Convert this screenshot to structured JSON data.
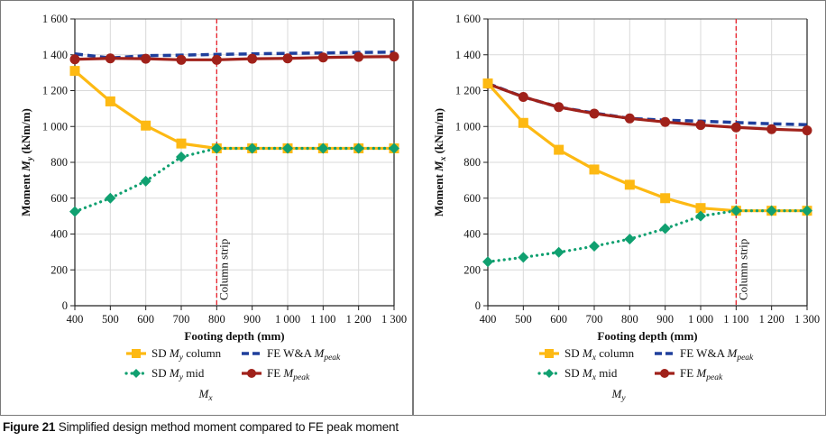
{
  "caption": {
    "label": "Figure 21",
    "text": "Simplified design method moment compared to FE peak moment"
  },
  "chart_data": [
    {
      "type": "line",
      "panel_title": "Mx",
      "xlabel": "Footing depth (mm)",
      "ylabel": "Moment My (kNm/m)",
      "ylabel_parts": [
        "Moment ",
        "M",
        "y",
        " (kNm/m)"
      ],
      "x": [
        400,
        500,
        600,
        700,
        800,
        900,
        1000,
        1100,
        1200,
        1300
      ],
      "x_tick_labels": [
        "400",
        "500",
        "600",
        "700",
        "800",
        "900",
        "1 000",
        "1 100",
        "1 200",
        "1 300"
      ],
      "xlim": [
        400,
        1300
      ],
      "ylim": [
        0,
        1600
      ],
      "y_ticks": [
        0,
        200,
        400,
        600,
        800,
        1000,
        1200,
        1400,
        1600
      ],
      "y_tick_labels": [
        "0",
        "200",
        "400",
        "600",
        "800",
        "1 000",
        "1 200",
        "1 400",
        "1 600"
      ],
      "grid": true,
      "legend_position": "bottom",
      "annotation": {
        "x": 800,
        "label": "Column strip",
        "style": "red-dashed-vertical"
      },
      "series": [
        {
          "key": "sd_col",
          "name": "SD My column",
          "name_parts": [
            "SD ",
            "M",
            "y",
            " column"
          ],
          "color": "#FDB913",
          "style": "solid",
          "marker": "square",
          "values": [
            1310,
            1140,
            1005,
            905,
            878,
            878,
            878,
            878,
            878,
            878
          ]
        },
        {
          "key": "sd_mid",
          "name": "SD My mid",
          "name_parts": [
            "SD ",
            "M",
            "y",
            " mid"
          ],
          "color": "#10A070",
          "style": "dotted",
          "marker": "diamond",
          "values": [
            525,
            600,
            695,
            830,
            878,
            878,
            878,
            878,
            878,
            878
          ]
        },
        {
          "key": "fe_wa",
          "name": "FE W&A Mpeak",
          "name_parts": [
            "FE W&A ",
            "M",
            "peak",
            ""
          ],
          "color": "#1F3F9C",
          "style": "dashed",
          "marker": "none",
          "values": [
            1405,
            1382,
            1395,
            1398,
            1402,
            1405,
            1408,
            1410,
            1413,
            1415
          ]
        },
        {
          "key": "fe_peak",
          "name": "FE Mpeak",
          "name_parts": [
            "FE ",
            "M",
            "peak",
            ""
          ],
          "color": "#A0211A",
          "style": "solid",
          "marker": "circle",
          "values": [
            1375,
            1380,
            1378,
            1372,
            1372,
            1378,
            1380,
            1385,
            1388,
            1390
          ]
        }
      ]
    },
    {
      "type": "line",
      "panel_title": "My",
      "xlabel": "Footing depth (mm)",
      "ylabel": "Moment Mx (kNm/m)",
      "ylabel_parts": [
        "Moment ",
        "M",
        "x",
        " (kNm/m)"
      ],
      "x": [
        400,
        500,
        600,
        700,
        800,
        900,
        1000,
        1100,
        1200,
        1300
      ],
      "x_tick_labels": [
        "400",
        "500",
        "600",
        "700",
        "800",
        "900",
        "1 000",
        "1 100",
        "1 200",
        "1 300"
      ],
      "xlim": [
        400,
        1300
      ],
      "ylim": [
        0,
        1600
      ],
      "y_ticks": [
        0,
        200,
        400,
        600,
        800,
        1000,
        1200,
        1400,
        1600
      ],
      "y_tick_labels": [
        "0",
        "200",
        "400",
        "600",
        "800",
        "1 000",
        "1 200",
        "1 400",
        "1 600"
      ],
      "grid": true,
      "legend_position": "bottom",
      "annotation": {
        "x": 1100,
        "label": "Column strip",
        "style": "red-dashed-vertical"
      },
      "series": [
        {
          "key": "sd_col",
          "name": "SD Mx column",
          "name_parts": [
            "SD ",
            "M",
            "x",
            " column"
          ],
          "color": "#FDB913",
          "style": "solid",
          "marker": "square",
          "values": [
            1240,
            1020,
            870,
            760,
            675,
            600,
            545,
            530,
            530,
            530
          ]
        },
        {
          "key": "sd_mid",
          "name": "SD Mx mid",
          "name_parts": [
            "SD ",
            "M",
            "x",
            " mid"
          ],
          "color": "#10A070",
          "style": "dotted",
          "marker": "diamond",
          "values": [
            245,
            270,
            298,
            332,
            372,
            430,
            500,
            530,
            530,
            530
          ]
        },
        {
          "key": "fe_wa",
          "name": "FE W&A Mpeak",
          "name_parts": [
            "FE W&A ",
            "M",
            "peak",
            ""
          ],
          "color": "#1F3F9C",
          "style": "dashed",
          "marker": "none",
          "values": [
            1240,
            1165,
            1108,
            1075,
            1045,
            1035,
            1030,
            1022,
            1015,
            1010
          ]
        },
        {
          "key": "fe_peak",
          "name": "FE Mpeak",
          "name_parts": [
            "FE ",
            "M",
            "peak",
            ""
          ],
          "color": "#A0211A",
          "style": "solid",
          "marker": "circle",
          "values": [
            1238,
            1165,
            1108,
            1072,
            1045,
            1025,
            1008,
            995,
            985,
            978
          ]
        }
      ]
    }
  ]
}
